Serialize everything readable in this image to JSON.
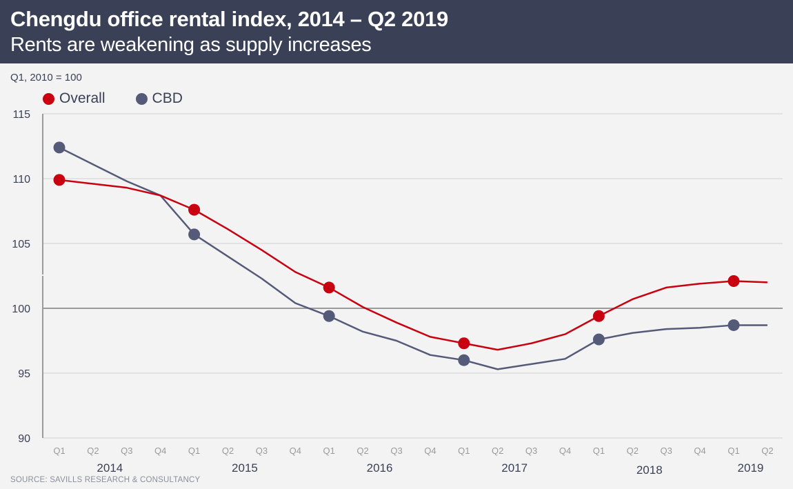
{
  "header": {
    "title": "Chengdu office rental index, 2014 – Q2 2019",
    "subtitle": "Rents are weakening as supply increases"
  },
  "unit_label": "Q1, 2010 = 100",
  "source": "SOURCE: SAVILLS RESEARCH & CONSULTANCY",
  "colors": {
    "header_bg": "#3a4157",
    "overall": "#c8000f",
    "cbd": "#545a78",
    "background": "#f3f3f3"
  },
  "chart_data": {
    "type": "line",
    "title": "Chengdu office rental index, 2014 – Q2 2019",
    "subtitle": "Rents are weakening as supply increases",
    "xlabel": "",
    "ylabel": "Q1, 2010 = 100",
    "ylim": [
      90,
      115
    ],
    "yticks": [
      90,
      95,
      100,
      105,
      110,
      115
    ],
    "grid": true,
    "baseline": 100,
    "legend_position": "top-left",
    "x": [
      "Q1",
      "Q2",
      "Q3",
      "Q4",
      "Q1",
      "Q2",
      "Q3",
      "Q4",
      "Q1",
      "Q2",
      "Q3",
      "Q4",
      "Q1",
      "Q2",
      "Q3",
      "Q4",
      "Q1",
      "Q2",
      "Q3",
      "Q4",
      "Q1",
      "Q2"
    ],
    "years": [
      {
        "label": "2014",
        "start": 0,
        "end": 3
      },
      {
        "label": "2015",
        "start": 4,
        "end": 7
      },
      {
        "label": "2016",
        "start": 8,
        "end": 11
      },
      {
        "label": "2017",
        "start": 12,
        "end": 15
      },
      {
        "label": "2018",
        "start": 16,
        "end": 19
      },
      {
        "label": "2019",
        "start": 20,
        "end": 21
      }
    ],
    "marker_every": 4,
    "series": [
      {
        "name": "Overall",
        "color": "#c8000f",
        "values": [
          109.9,
          109.6,
          109.3,
          108.7,
          107.6,
          106.1,
          104.5,
          102.8,
          101.6,
          100.1,
          98.9,
          97.8,
          97.3,
          96.8,
          97.3,
          98.0,
          99.4,
          100.7,
          101.6,
          101.9,
          102.1,
          102.0
        ]
      },
      {
        "name": "CBD",
        "color": "#545a78",
        "values": [
          112.4,
          111.1,
          109.8,
          108.7,
          105.7,
          104.0,
          102.3,
          100.4,
          99.4,
          98.2,
          97.5,
          96.4,
          96.0,
          95.3,
          95.7,
          96.1,
          97.6,
          98.1,
          98.4,
          98.5,
          98.7,
          98.7
        ]
      }
    ]
  }
}
